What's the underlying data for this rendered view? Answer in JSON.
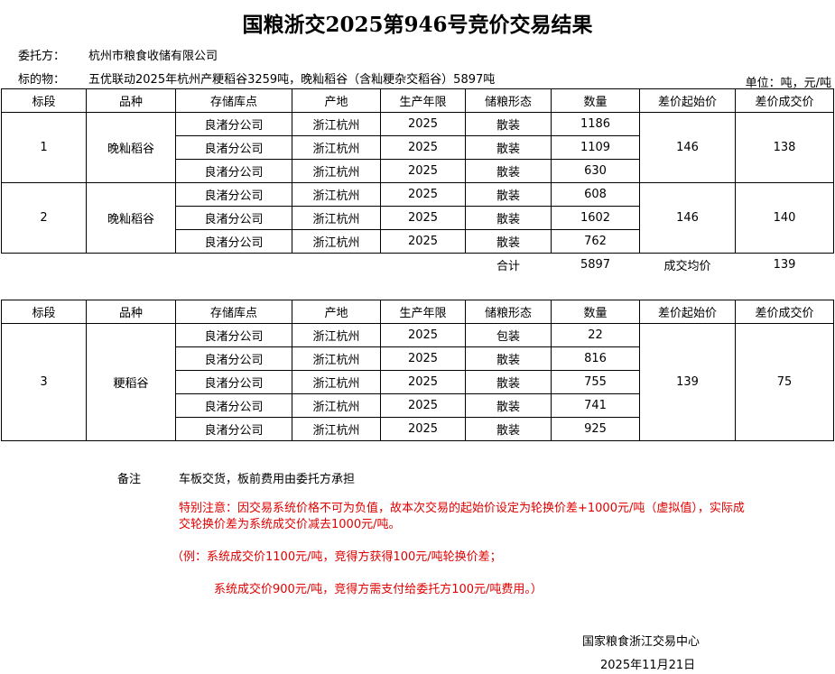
{
  "title": "国粮浙交2025第946号竞价交易结果",
  "client_label": "委托方：",
  "client": "杭州市粮食收储有限公司",
  "subject_label": "标的物：",
  "subject": "五优联动2025年杭州产粳稻谷3259吨，晚籼稻谷（含籼粳杂交稻谷）5897吨",
  "unit": "单位：吨，元/吨",
  "headers": [
    "标段",
    "品种",
    "存储库点",
    "产地",
    "生产年限",
    "储粮形态",
    "数量",
    "差价起始价",
    "差价成交价"
  ],
  "table1": {
    "lots": [
      {
        "lot": "1",
        "variety": "晚籼稻谷",
        "start": "146",
        "deal": "138",
        "rows": [
          [
            "良渚分公司",
            "浙江杭州",
            "2025",
            "散装",
            "1186"
          ],
          [
            "良渚分公司",
            "浙江杭州",
            "2025",
            "散装",
            "1109"
          ],
          [
            "良渚分公司",
            "浙江杭州",
            "2025",
            "散装",
            "630"
          ]
        ]
      },
      {
        "lot": "2",
        "variety": "晚籼稻谷",
        "start": "146",
        "deal": "140",
        "rows": [
          [
            "良渚分公司",
            "浙江杭州",
            "2025",
            "散装",
            "608"
          ],
          [
            "良渚分公司",
            "浙江杭州",
            "2025",
            "散装",
            "1602"
          ],
          [
            "良渚分公司",
            "浙江杭州",
            "2025",
            "散装",
            "762"
          ]
        ]
      }
    ],
    "total_label": "合计",
    "total": "5897",
    "avg_label": "成交均价",
    "avg": "139"
  },
  "table2": {
    "lots": [
      {
        "lot": "3",
        "variety": "粳稻谷",
        "start": "139",
        "deal": "75",
        "rows": [
          [
            "良渚分公司",
            "浙江杭州",
            "2025",
            "包装",
            "22"
          ],
          [
            "良渚分公司",
            "浙江杭州",
            "2025",
            "散装",
            "816"
          ],
          [
            "良渚分公司",
            "浙江杭州",
            "2025",
            "散装",
            "755"
          ],
          [
            "良渚分公司",
            "浙江杭州",
            "2025",
            "散装",
            "741"
          ],
          [
            "良渚分公司",
            "浙江杭州",
            "2025",
            "散装",
            "925"
          ]
        ]
      }
    ]
  },
  "notes": {
    "label": "备注",
    "main": "车板交货，板前费用由委托方承担",
    "special1": "特别注意：因交易系统价格不可为负值，故本次交易的起始价设定为轮换价差+1000元/吨（虚拟值），实际成",
    "special2": "交轮换价差为系统成交价减去1000元/吨。",
    "example1": "（例：系统成交价1100元/吨，竞得方获得100元/吨轮换价差；",
    "example2": "系统成交价900元/吨，竞得方需支付给委托方100元/吨费用。）"
  },
  "footer": {
    "org": "国家粮食浙江交易中心",
    "date": "2025年11月21日"
  },
  "colors": {
    "note_red": "#e00000"
  }
}
